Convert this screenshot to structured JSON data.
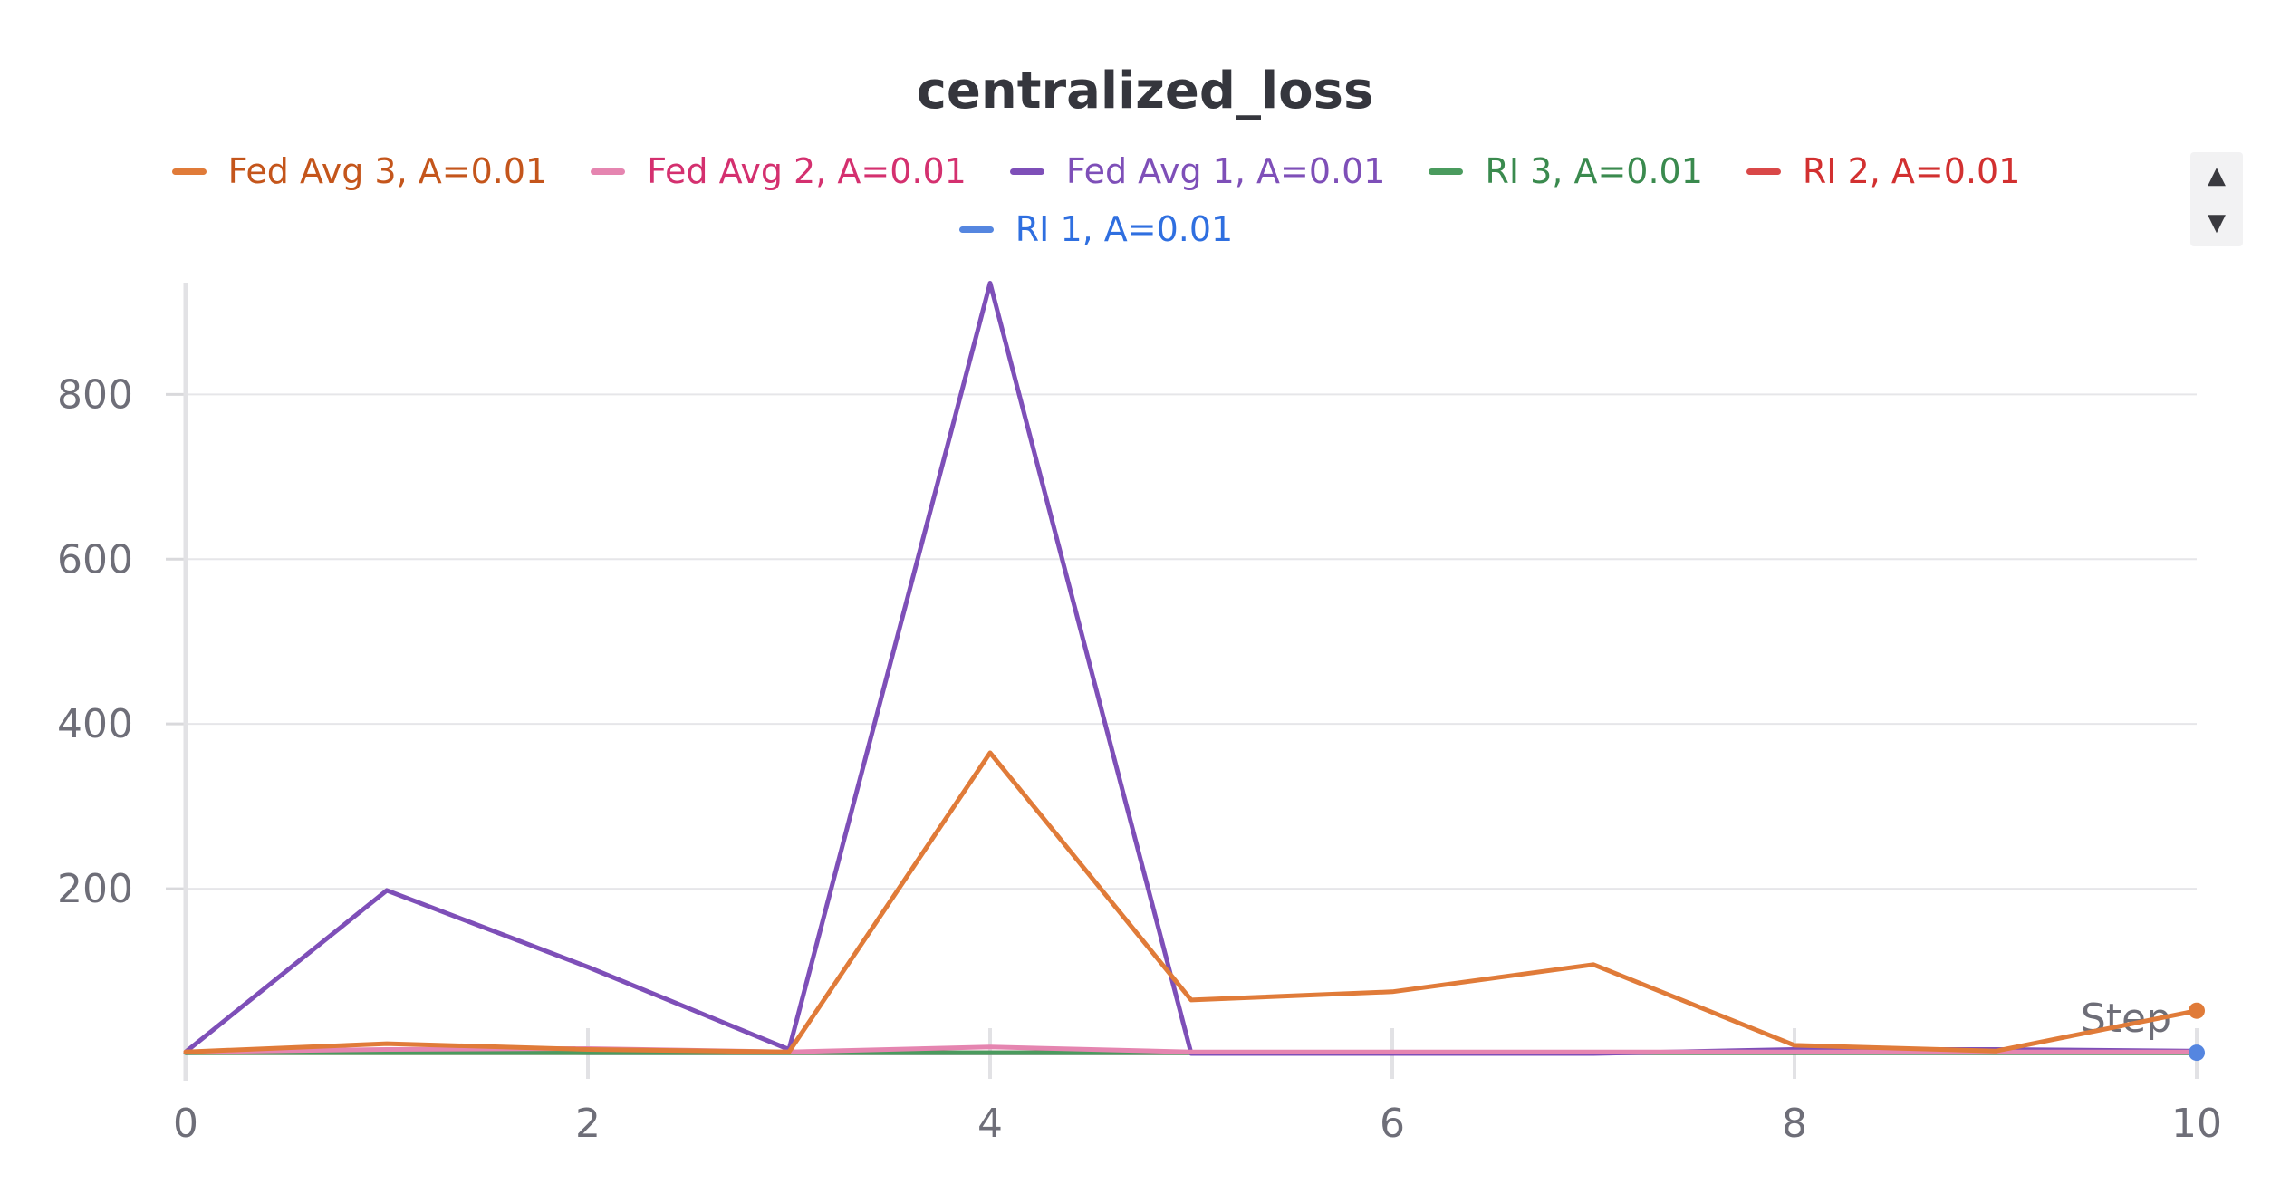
{
  "chart_data": {
    "type": "line",
    "title": "centralized_loss",
    "xlabel": "Step",
    "ylabel": "",
    "xlim": [
      0,
      10
    ],
    "ylim": [
      0,
      940
    ],
    "x_ticks": [
      0,
      2,
      4,
      6,
      8,
      10
    ],
    "y_ticks": [
      200,
      400,
      600,
      800
    ],
    "grid": true,
    "legend_position": "top-center",
    "x": [
      0,
      1,
      2,
      3,
      4,
      5,
      6,
      7,
      8,
      9,
      10
    ],
    "series": [
      {
        "name": "Fed Avg 3, A=0.01",
        "color": "#e07b39",
        "label_color": "#c4551b",
        "values": [
          2,
          12,
          5,
          2,
          365,
          65,
          75,
          108,
          10,
          3,
          52
        ]
      },
      {
        "name": "Fed Avg 2, A=0.01",
        "color": "#e585b0",
        "label_color": "#d4306f",
        "values": [
          2,
          5,
          6,
          2,
          8,
          2,
          2,
          2,
          2,
          2,
          2
        ]
      },
      {
        "name": "Fed Avg 1, A=0.01",
        "color": "#7e4fb8",
        "label_color": "#7e4fb8",
        "values": [
          2,
          198,
          105,
          5,
          935,
          0,
          0,
          0,
          5,
          5,
          3
        ]
      },
      {
        "name": "RI 3, A=0.01",
        "color": "#4a9b5e",
        "label_color": "#3a8a4e",
        "values": [
          1,
          1,
          1,
          1,
          1,
          1,
          1,
          1,
          1,
          1,
          1
        ]
      },
      {
        "name": "RI 2, A=0.01",
        "color": "#d94848",
        "label_color": "#d23030",
        "values": [
          1,
          1,
          1,
          1,
          1,
          1,
          1,
          1,
          1,
          1,
          1
        ]
      },
      {
        "name": "RI 1, A=0.01",
        "color": "#5586e0",
        "label_color": "#2f6fe0",
        "values": [
          1,
          3,
          1,
          1,
          1,
          1,
          1,
          1,
          1,
          1,
          1
        ]
      }
    ]
  },
  "legend_scroll": {
    "up_icon": "triangle-up-icon",
    "down_icon": "triangle-down-icon",
    "up_glyph": "▲",
    "down_glyph": "▼"
  }
}
